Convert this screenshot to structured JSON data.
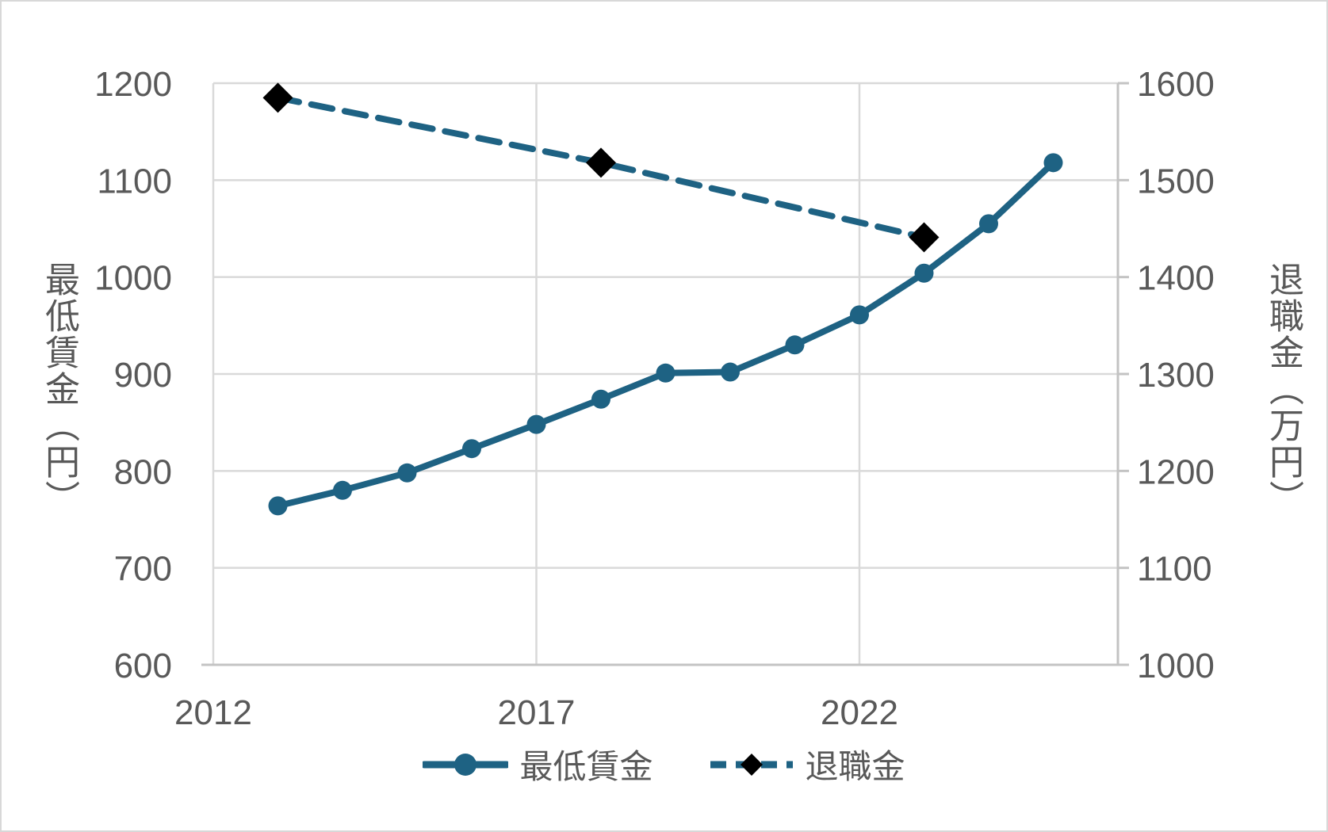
{
  "chart_data": {
    "type": "line",
    "title": "",
    "x_axis": {
      "min": 2012,
      "max": 2026,
      "tick_labels": [
        2012,
        2017,
        2022
      ],
      "gridline_years": [
        2017,
        2022
      ]
    },
    "left_axis": {
      "title": "最低賃金（円）",
      "min": 600,
      "max": 1200,
      "step": 100,
      "ticks": [
        1200,
        1100,
        1000,
        900,
        800,
        700,
        600
      ]
    },
    "right_axis": {
      "title": "退職金（万円）",
      "min": 1000,
      "max": 1600,
      "step": 100,
      "ticks": [
        1600,
        1500,
        1400,
        1300,
        1200,
        1100,
        1000
      ]
    },
    "series": [
      {
        "name": "最低賃金",
        "axis": "left",
        "line_style": "solid",
        "marker": "circle",
        "color": "#1e6283",
        "marker_color": "#1e6283",
        "x": [
          2013,
          2014,
          2015,
          2016,
          2017,
          2018,
          2019,
          2020,
          2021,
          2022,
          2023,
          2024,
          2025
        ],
        "values": [
          764,
          780,
          798,
          823,
          848,
          874,
          901,
          902,
          930,
          961,
          1004,
          1055,
          1118
        ]
      },
      {
        "name": "退職金",
        "axis": "right",
        "line_style": "dashed",
        "marker": "diamond",
        "color": "#1e6283",
        "marker_color": "#000000",
        "x": [
          2013,
          2018,
          2023
        ],
        "values": [
          1585,
          1518,
          1441
        ]
      }
    ],
    "legend": {
      "position": "bottom",
      "items": [
        "最低賃金",
        "退職金"
      ]
    },
    "grid": true
  },
  "colors": {
    "line_teal": "#1e6283",
    "marker_black": "#000000",
    "gridline": "#d9d9d9",
    "axis_line": "#c3c3c3",
    "text": "#595959",
    "background": "#ffffff"
  }
}
